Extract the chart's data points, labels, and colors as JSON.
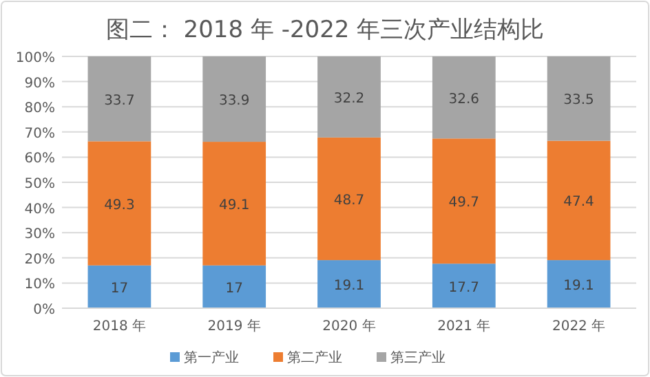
{
  "chart_data": {
    "type": "bar",
    "stacked": true,
    "title": "图二： 2018 年 -2022 年三次产业结构比",
    "categories": [
      "2018 年",
      "2019 年",
      "2020 年",
      "2021 年",
      "2022 年"
    ],
    "series": [
      {
        "name": "第一产业",
        "color": "#5b9bd5",
        "values": [
          17,
          17,
          19.1,
          17.7,
          19.1
        ]
      },
      {
        "name": "第二产业",
        "color": "#ed7d31",
        "values": [
          49.3,
          49.1,
          48.7,
          49.7,
          47.4
        ]
      },
      {
        "name": "第三产业",
        "color": "#a5a5a5",
        "values": [
          33.7,
          33.9,
          32.2,
          32.6,
          33.5
        ]
      }
    ],
    "ylim": [
      0,
      100
    ],
    "yticks": [
      {
        "value": 0,
        "label": "0%"
      },
      {
        "value": 10,
        "label": "10%"
      },
      {
        "value": 20,
        "label": "20%"
      },
      {
        "value": 30,
        "label": "30%"
      },
      {
        "value": 40,
        "label": "40%"
      },
      {
        "value": 50,
        "label": "50%"
      },
      {
        "value": 60,
        "label": "60%"
      },
      {
        "value": 70,
        "label": "70%"
      },
      {
        "value": 80,
        "label": "80%"
      },
      {
        "value": 90,
        "label": "90%"
      },
      {
        "value": 100,
        "label": "100%"
      }
    ],
    "grid": "y",
    "legend": "bottom",
    "data_labels": true
  }
}
